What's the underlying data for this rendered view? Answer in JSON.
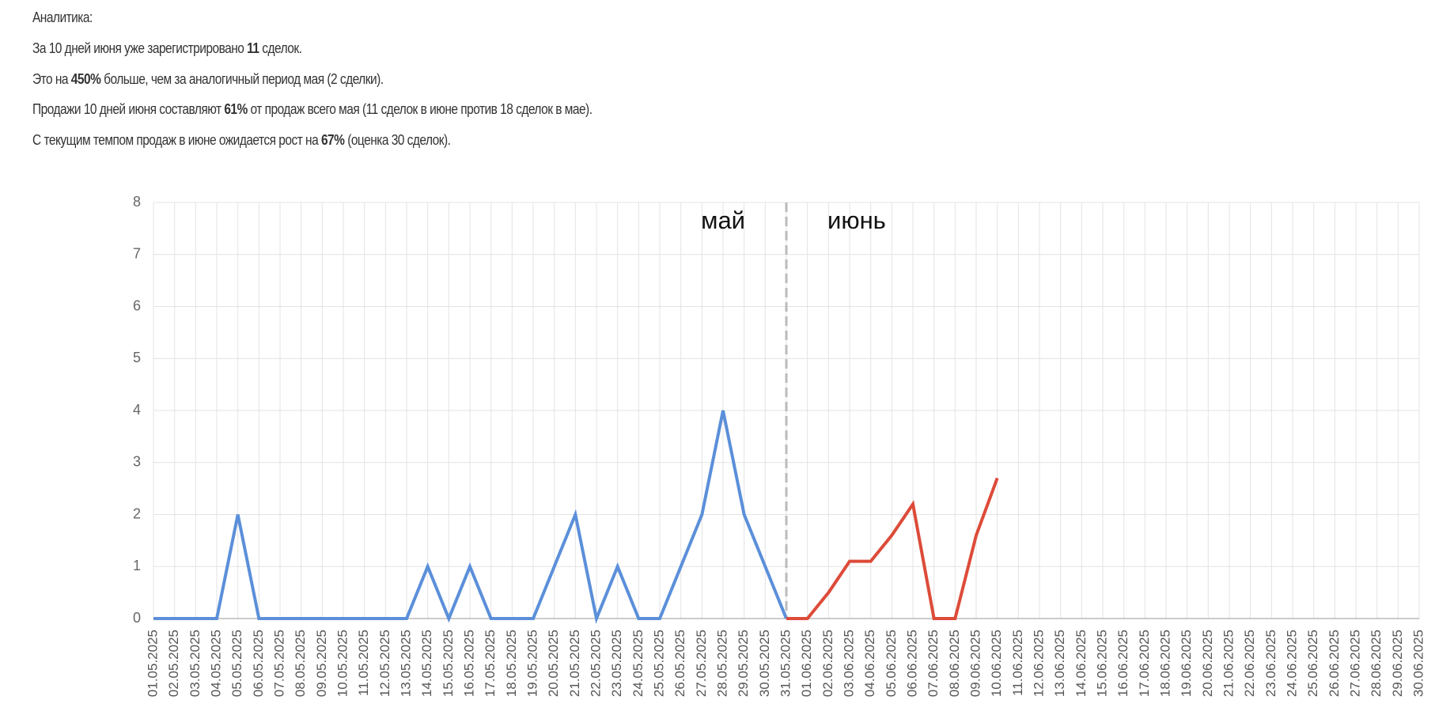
{
  "analytics": {
    "heading": "Аналитика:",
    "lines": [
      {
        "before": "За 10 дней июня уже зарегистрировано ",
        "bold": "11",
        "after": " сделок."
      },
      {
        "before": "Это на ",
        "bold": "450%",
        "after": " больше, чем за аналогичный период мая (2 сделки)."
      },
      {
        "before": "Продажи 10 дней июня составляют ",
        "bold": "61%",
        "after": " от продаж всего мая (11 сделок в июне против 18 сделок в мае)."
      },
      {
        "before": "С текущим темпом продаж в июне ожидается рост на ",
        "bold": "67%",
        "after": " (оценка 30 сделок)."
      }
    ]
  },
  "chart_data": {
    "type": "line",
    "categories": [
      "01.05.2025",
      "02.05.2025",
      "03.05.2025",
      "04.05.2025",
      "05.05.2025",
      "06.05.2025",
      "07.05.2025",
      "08.05.2025",
      "09.05.2025",
      "10.05.2025",
      "11.05.2025",
      "12.05.2025",
      "13.05.2025",
      "14.05.2025",
      "15.05.2025",
      "16.05.2025",
      "17.05.2025",
      "18.05.2025",
      "19.05.2025",
      "20.05.2025",
      "21.05.2025",
      "22.05.2025",
      "23.05.2025",
      "24.05.2025",
      "25.05.2025",
      "26.05.2025",
      "27.05.2025",
      "28.05.2025",
      "29.05.2025",
      "30.05.2025",
      "31.05.2025",
      "01.06.2025",
      "02.06.2025",
      "03.06.2025",
      "04.06.2025",
      "05.06.2025",
      "06.06.2025",
      "07.06.2025",
      "08.06.2025",
      "09.06.2025",
      "10.06.2025",
      "11.06.2025",
      "12.06.2025",
      "13.06.2025",
      "14.06.2025",
      "15.06.2025",
      "16.06.2025",
      "17.06.2025",
      "18.06.2025",
      "19.06.2025",
      "20.06.2025",
      "21.06.2025",
      "22.06.2025",
      "23.06.2025",
      "24.06.2025",
      "25.06.2025",
      "26.06.2025",
      "27.06.2025",
      "28.06.2025",
      "29.06.2025",
      "30.06.2025"
    ],
    "series": [
      {
        "color": "#5b8fd9",
        "values": [
          0,
          0,
          0,
          0,
          2,
          0,
          0,
          0,
          0,
          0,
          0,
          0,
          0,
          1,
          0,
          1,
          0,
          0,
          0,
          1,
          2,
          0,
          1,
          0,
          0,
          1,
          2,
          4,
          2,
          1,
          0,
          null,
          null,
          null,
          null,
          null,
          null,
          null,
          null,
          null,
          null,
          null,
          null,
          null,
          null,
          null,
          null,
          null,
          null,
          null,
          null,
          null,
          null,
          null,
          null,
          null,
          null,
          null,
          null,
          null,
          null
        ]
      },
      {
        "color": "#dd4b39",
        "values": [
          null,
          null,
          null,
          null,
          null,
          null,
          null,
          null,
          null,
          null,
          null,
          null,
          null,
          null,
          null,
          null,
          null,
          null,
          null,
          null,
          null,
          null,
          null,
          null,
          null,
          null,
          null,
          null,
          null,
          null,
          0,
          0,
          0.5,
          1.1,
          1.1,
          1.6,
          2.2,
          0,
          0,
          1.6,
          2.7,
          null,
          null,
          null,
          null,
          null,
          null,
          null,
          null,
          null,
          null,
          null,
          null,
          null,
          null,
          null,
          null,
          null,
          null,
          null,
          null
        ]
      }
    ],
    "annotations": [
      "май",
      "июнь"
    ],
    "ylim": [
      0,
      8
    ],
    "yticks": [
      0,
      1,
      2,
      3,
      4,
      5,
      6,
      7,
      8
    ],
    "grid": true
  }
}
